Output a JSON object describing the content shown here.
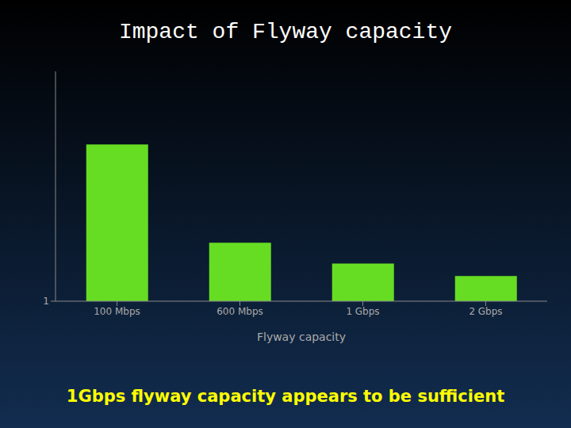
{
  "chart_data": {
    "type": "bar",
    "title": "Impact of Flyway capacity",
    "categories": [
      "100 Mbps",
      "600 Mbps",
      "1 Gbps",
      "2 Gbps"
    ],
    "values": [
      1.75,
      1.28,
      1.18,
      1.12
    ],
    "color": "#66dd22",
    "xlabel": "Flyway capacity",
    "annotation": "1Gbps flyway capacity appears to be sufficient",
    "ylim": [
      1.0,
      2.1
    ],
    "yticks": [
      1
    ],
    "grid": false
  }
}
